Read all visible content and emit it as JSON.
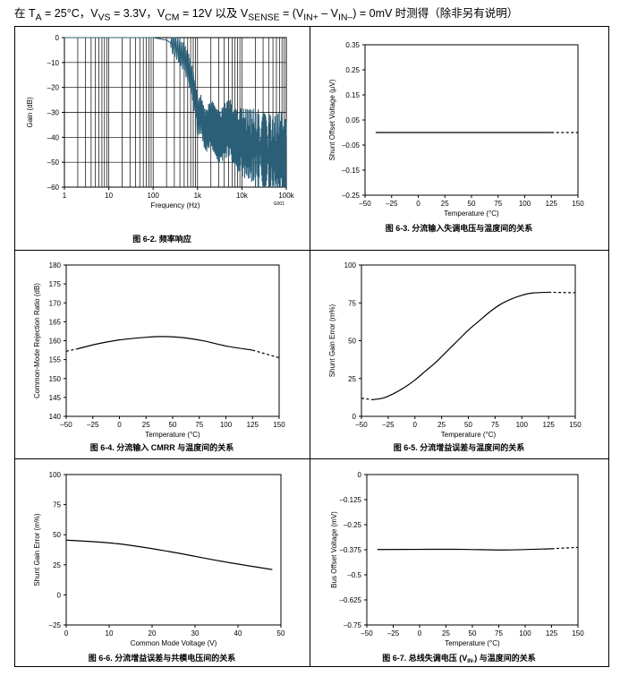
{
  "header": {
    "prefix": "在 T",
    "ta_sub": "A",
    "ta_rest": " = 25°C，V",
    "vs_sub": "VS",
    "vs_rest": " = 3.3V，V",
    "cm_sub": "CM",
    "cm_rest": " = 12V 以及 V",
    "sense_sub": "SENSE",
    "sense_rest": " = (V",
    "inp_sub": "IN+",
    "mid": " – V",
    "inm_sub": "IN–",
    "suffix": ") = 0mV 时测得（除非另有说明）"
  },
  "chart_data": [
    {
      "id": "fig-6-2",
      "type": "line",
      "caption": "图 6-2. 频率响应",
      "xlabel": "Frequency (Hz)",
      "ylabel": "Gain (dB)",
      "xscale": "log",
      "xlim": [
        1,
        100000
      ],
      "ylim": [
        -60,
        0
      ],
      "x_ticks": [
        "1",
        "10",
        "100",
        "1k",
        "10k",
        "100k"
      ],
      "y_ticks": [
        "0",
        "–10",
        "–20",
        "–30",
        "–40",
        "–50",
        "–60"
      ],
      "grid": true,
      "line_color": "#2b5f78",
      "annotation": "G001",
      "series": [
        {
          "x": [
            1,
            10,
            100,
            200,
            300,
            500,
            700,
            900,
            1000,
            1200,
            1500,
            2000,
            3000,
            5000,
            10000,
            20000,
            50000,
            100000
          ],
          "y": [
            0,
            0,
            0,
            -1,
            -3,
            -8,
            -15,
            -25,
            -32,
            -30,
            -38,
            -34,
            -40,
            -36,
            -42,
            -44,
            -47,
            -45
          ]
        }
      ]
    },
    {
      "id": "fig-6-3",
      "type": "line",
      "caption": "图 6-3. 分流输入失调电压与温度间的关系",
      "xlabel": "Temperature (°C)",
      "ylabel": "Shunt Offset Voltage (µV)",
      "xlim": [
        -50,
        150
      ],
      "ylim": [
        -0.25,
        0.35
      ],
      "x_ticks": [
        "–50",
        "–25",
        "0",
        "25",
        "50",
        "75",
        "100",
        "125",
        "150"
      ],
      "y_ticks": [
        "0.35",
        "0.25",
        "0.15",
        "0.05",
        "–0.05",
        "–0.15",
        "–0.25"
      ],
      "series": [
        {
          "style": "solid",
          "x": [
            -40,
            125
          ],
          "y": [
            0,
            0
          ]
        },
        {
          "style": "dashed",
          "x": [
            125,
            150
          ],
          "y": [
            0,
            0
          ]
        }
      ]
    },
    {
      "id": "fig-6-4",
      "type": "line",
      "caption": "图 6-4. 分流输入 CMRR 与温度间的关系",
      "xlabel": "Temperature (°C)",
      "ylabel": "Common-Mode Rejection Ratio (dB)",
      "xlim": [
        -50,
        150
      ],
      "ylim": [
        140,
        180
      ],
      "x_ticks": [
        "–50",
        "–25",
        "0",
        "25",
        "50",
        "75",
        "100",
        "125",
        "150"
      ],
      "y_ticks": [
        "180",
        "175",
        "170",
        "165",
        "160",
        "155",
        "150",
        "145",
        "140"
      ],
      "series": [
        {
          "style": "dashed",
          "x": [
            -50,
            -40
          ],
          "y": [
            157.2,
            157.8
          ]
        },
        {
          "style": "solid",
          "x": [
            -40,
            -20,
            0,
            25,
            40,
            60,
            80,
            100,
            125
          ],
          "y": [
            157.8,
            159.2,
            160.2,
            160.9,
            161.1,
            160.8,
            159.9,
            158.6,
            157.5
          ]
        },
        {
          "style": "dashed",
          "x": [
            125,
            150
          ],
          "y": [
            157.5,
            155.5
          ]
        }
      ]
    },
    {
      "id": "fig-6-5",
      "type": "line",
      "caption": "图 6-5. 分流增益误差与温度间的关系",
      "xlabel": "Temperature (°C)",
      "ylabel": "Shunt Gain Error (m%)",
      "xlim": [
        -50,
        150
      ],
      "ylim": [
        0,
        100
      ],
      "x_ticks": [
        "–50",
        "–25",
        "0",
        "25",
        "50",
        "75",
        "100",
        "125",
        "150"
      ],
      "y_ticks": [
        "100",
        "75",
        "50",
        "25",
        "0"
      ],
      "series": [
        {
          "style": "dashed",
          "x": [
            -50,
            -40
          ],
          "y": [
            12,
            11
          ]
        },
        {
          "style": "solid",
          "x": [
            -40,
            -30,
            -20,
            -10,
            0,
            10,
            20,
            30,
            40,
            50,
            60,
            70,
            80,
            90,
            100,
            110,
            125
          ],
          "y": [
            11,
            12,
            15,
            19,
            24,
            30,
            36,
            43,
            50,
            57,
            63,
            69,
            74,
            77.5,
            80,
            81.5,
            82
          ]
        },
        {
          "style": "dashed",
          "x": [
            125,
            150
          ],
          "y": [
            82,
            81.7
          ]
        }
      ]
    },
    {
      "id": "fig-6-6",
      "type": "line",
      "caption": "图 6-6. 分流增益误差与共模电压间的关系",
      "xlabel": "Common Mode Voltage (V)",
      "ylabel": "Shunt Gain Error (m%)",
      "xlim": [
        0,
        50
      ],
      "ylim": [
        -25,
        100
      ],
      "x_ticks": [
        "0",
        "10",
        "20",
        "30",
        "40",
        "50"
      ],
      "y_ticks": [
        "100",
        "75",
        "50",
        "25",
        "0",
        "–25"
      ],
      "series": [
        {
          "style": "solid",
          "x": [
            0,
            12,
            24,
            36,
            48
          ],
          "y": [
            45.5,
            42.5,
            36,
            28,
            21
          ]
        }
      ]
    },
    {
      "id": "fig-6-7",
      "type": "line",
      "caption_prefix": "图 6-7. 总线失调电压 (V",
      "caption_sub": "IN-",
      "caption_suffix": ") 与温度间的关系",
      "xlabel": "Temperature (°C)",
      "ylabel": "Bus Offset Voltage (mV)",
      "xlim": [
        -50,
        150
      ],
      "ylim": [
        -0.75,
        0
      ],
      "x_ticks": [
        "–50",
        "–25",
        "0",
        "25",
        "50",
        "75",
        "100",
        "125",
        "150"
      ],
      "y_ticks": [
        "0",
        "–0.125",
        "–0.25",
        "–0.375",
        "–0.5",
        "–0.625",
        "–0.75"
      ],
      "series": [
        {
          "style": "solid",
          "x": [
            -40,
            0,
            40,
            80,
            125
          ],
          "y": [
            -0.374,
            -0.373,
            -0.373,
            -0.376,
            -0.37
          ]
        },
        {
          "style": "dashed",
          "x": [
            125,
            150
          ],
          "y": [
            -0.37,
            -0.363
          ]
        }
      ]
    }
  ]
}
